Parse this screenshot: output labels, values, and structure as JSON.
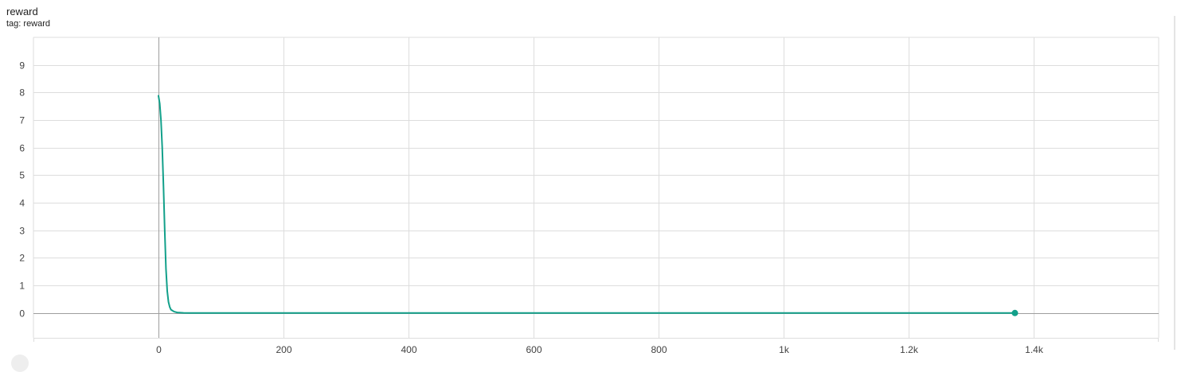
{
  "card": {
    "title": "reward",
    "tag": "tag: reward"
  },
  "colors": {
    "series": "#12a08a",
    "grid": "#dddddd",
    "zero_axis": "#9e9e9e",
    "tick_text": "#424242"
  },
  "chart_data": {
    "type": "line",
    "title": "reward",
    "xlabel": "",
    "ylabel": "",
    "xlim": [
      -200,
      1600
    ],
    "ylim": [
      -0.9,
      10
    ],
    "grid": true,
    "x_ticks": [
      {
        "value": 0,
        "label": "0"
      },
      {
        "value": 200,
        "label": "200"
      },
      {
        "value": 400,
        "label": "400"
      },
      {
        "value": 600,
        "label": "600"
      },
      {
        "value": 800,
        "label": "800"
      },
      {
        "value": 1000,
        "label": "1k"
      },
      {
        "value": 1200,
        "label": "1.2k"
      },
      {
        "value": 1400,
        "label": "1.4k"
      }
    ],
    "y_ticks": [
      {
        "value": 0,
        "label": "0"
      },
      {
        "value": 1,
        "label": "1"
      },
      {
        "value": 2,
        "label": "2"
      },
      {
        "value": 3,
        "label": "3"
      },
      {
        "value": 4,
        "label": "4"
      },
      {
        "value": 5,
        "label": "5"
      },
      {
        "value": 6,
        "label": "6"
      },
      {
        "value": 7,
        "label": "7"
      },
      {
        "value": 8,
        "label": "8"
      },
      {
        "value": 9,
        "label": "9"
      }
    ],
    "series": [
      {
        "x": [
          0,
          2,
          4,
          6,
          8,
          10,
          12,
          14,
          16,
          18,
          20,
          25,
          30,
          40,
          50,
          100,
          200,
          400,
          600,
          800,
          1000,
          1200,
          1370
        ],
        "y": [
          7.88,
          7.6,
          7.0,
          6.0,
          4.6,
          3.0,
          1.6,
          0.8,
          0.4,
          0.22,
          0.12,
          0.05,
          0.02,
          0.005,
          0.0,
          0.0,
          0.0,
          0.0,
          0.0,
          0.0,
          0.0,
          0.0,
          0.0
        ]
      }
    ],
    "last_point": {
      "x": 1370,
      "y": 0.0
    }
  }
}
